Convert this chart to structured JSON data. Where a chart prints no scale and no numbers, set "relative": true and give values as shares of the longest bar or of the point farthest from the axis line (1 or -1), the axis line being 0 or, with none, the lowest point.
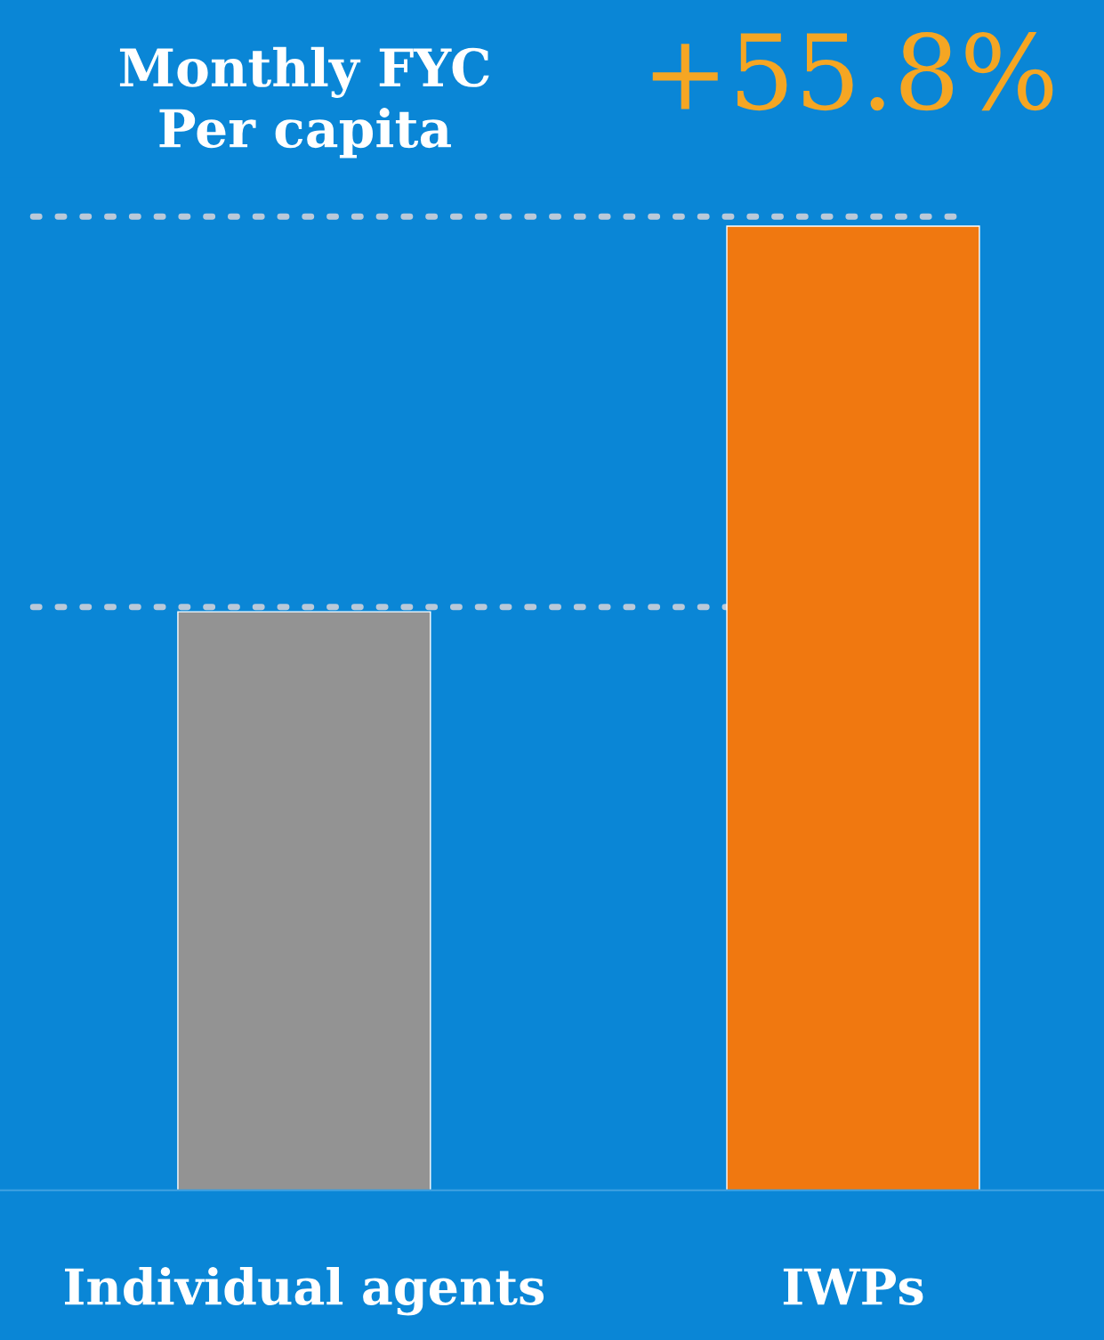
{
  "chart_data": {
    "type": "bar",
    "title": "Monthly FYC\nPer capita",
    "relative": true,
    "categories": [
      "Individual agents",
      "IWPs"
    ],
    "values": [
      0.6,
      1
    ],
    "colors": [
      "#939393",
      "#f07810"
    ],
    "annotations": [
      "+55.8%"
    ],
    "ref_lines": [
      {
        "axis": "y",
        "value": 1.01,
        "color": "#b9c9d9",
        "line_style": "dotted"
      },
      {
        "axis": "y",
        "value": 0.605,
        "color": "#b9c9d9",
        "line_style": "dotted"
      }
    ],
    "grid": false,
    "legend": false
  }
}
